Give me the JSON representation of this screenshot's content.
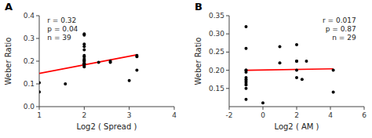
{
  "chart_data": [
    {
      "type": "scatter",
      "title": "A",
      "xlabel": "Log2 ( Spread )",
      "ylabel": "Weber Ratio",
      "annotation": "r = 0.32\np = 0.04\nn = 39",
      "xlim": [
        1,
        4
      ],
      "ylim": [
        0,
        0.4
      ],
      "xticks": [
        1,
        2,
        3,
        4
      ],
      "yticks": [
        {
          "value": 0,
          "label": "0.0"
        },
        0.1,
        0.2,
        0.3,
        0.4
      ],
      "series": [
        {
          "type": "scatter",
          "color": "#000000",
          "x": [
            1.0,
            1.0,
            1.58,
            2.0,
            2.0,
            2.0,
            2.0,
            2.0,
            2.0,
            2.0,
            2.0,
            2.0,
            2.0,
            2.0,
            2.0,
            2.0,
            2.0,
            2.0,
            2.0,
            2.0,
            2.32,
            2.58,
            2.58,
            3.0,
            3.17,
            3.17,
            3.17
          ],
          "values": [
            0.065,
            0.105,
            0.1,
            0.175,
            0.18,
            0.185,
            0.19,
            0.19,
            0.19,
            0.2,
            0.2,
            0.205,
            0.21,
            0.22,
            0.225,
            0.25,
            0.265,
            0.275,
            0.315,
            0.32,
            0.195,
            0.195,
            0.2,
            0.115,
            0.16,
            0.22,
            0.225
          ]
        },
        {
          "type": "line",
          "color": "#ff0000",
          "x": [
            1.0,
            3.17
          ],
          "values": [
            0.146,
            0.228
          ]
        }
      ]
    },
    {
      "type": "scatter",
      "title": "B",
      "xlabel": "Log2 ( AM )",
      "ylabel": "Weber Ratio",
      "annotation": "r = 0.017\np = 0.87\nn = 29",
      "xlim": [
        -2,
        6
      ],
      "ylim": [
        0.1,
        0.35
      ],
      "xticks": [
        -2,
        0,
        2,
        4,
        6
      ],
      "yticks": [
        0.15,
        {
          "value": 0.2,
          "label": "0.20"
        },
        0.25,
        {
          "value": 0.3,
          "label": "0.30"
        },
        0.35
      ],
      "series": [
        {
          "type": "scatter",
          "color": "#000000",
          "x": [
            -1.0,
            -1.0,
            -1.0,
            -1.0,
            -1.0,
            -1.0,
            -1.0,
            -1.0,
            -1.0,
            -1.0,
            -1.0,
            -1.0,
            0.0,
            1.0,
            1.0,
            2.0,
            2.0,
            2.0,
            2.0,
            2.0,
            2.32,
            2.58,
            4.17,
            4.17
          ],
          "values": [
            0.12,
            0.15,
            0.16,
            0.165,
            0.17,
            0.175,
            0.18,
            0.195,
            0.2,
            0.2,
            0.26,
            0.32,
            0.11,
            0.22,
            0.265,
            0.18,
            0.2,
            0.225,
            0.225,
            0.27,
            0.175,
            0.225,
            0.14,
            0.2
          ]
        },
        {
          "type": "line",
          "color": "#ff0000",
          "x": [
            -1.0,
            4.17
          ],
          "values": [
            0.2,
            0.204
          ]
        }
      ]
    }
  ]
}
